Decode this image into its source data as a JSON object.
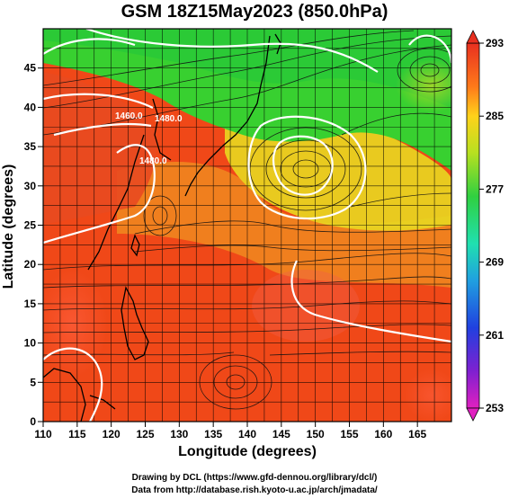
{
  "title": "GSM 18Z15May2023 (850.0hPa)",
  "axes": {
    "xlabel": "Longitude (degrees)",
    "ylabel": "Latitude (degrees)",
    "xticks": [
      "110",
      "115",
      "120",
      "125",
      "130",
      "135",
      "140",
      "145",
      "150",
      "155",
      "160",
      "165"
    ],
    "yticks": [
      "0",
      "5",
      "10",
      "15",
      "20",
      "25",
      "30",
      "35",
      "40",
      "45"
    ],
    "xlim": [
      110,
      170
    ],
    "ylim": [
      0,
      50
    ]
  },
  "colorbar": {
    "labels": [
      "293",
      "285",
      "277",
      "269",
      "261",
      "253"
    ],
    "range": [
      253,
      293
    ]
  },
  "contour_labels": [
    "1460.0",
    "1480.0",
    "1480.0"
  ],
  "credits": {
    "line1": "Drawing by DCL (https://www.gfd-dennou.org/library/dcl/)",
    "line2": "Data from http://database.rish.kyoto-u.ac.jp/arch/jmadata/"
  }
}
